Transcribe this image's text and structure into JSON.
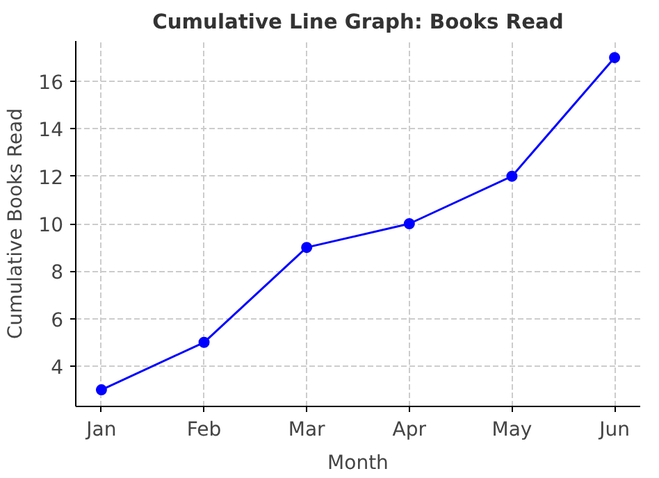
{
  "chart_data": {
    "type": "line",
    "title": "Cumulative Line Graph: Books Read",
    "xlabel": "Month",
    "ylabel": "Cumulative Books Read",
    "categories": [
      "Jan",
      "Feb",
      "Mar",
      "Apr",
      "May",
      "Jun"
    ],
    "series": [
      {
        "color": "#0000ff",
        "values": [
          3,
          5,
          9,
          10,
          12,
          17
        ]
      }
    ],
    "ylim": [
      2.3,
      17.7
    ],
    "yticks": [
      4,
      6,
      8,
      10,
      12,
      14,
      16
    ],
    "grid": true,
    "marker": "circle",
    "line_style": "solid"
  }
}
